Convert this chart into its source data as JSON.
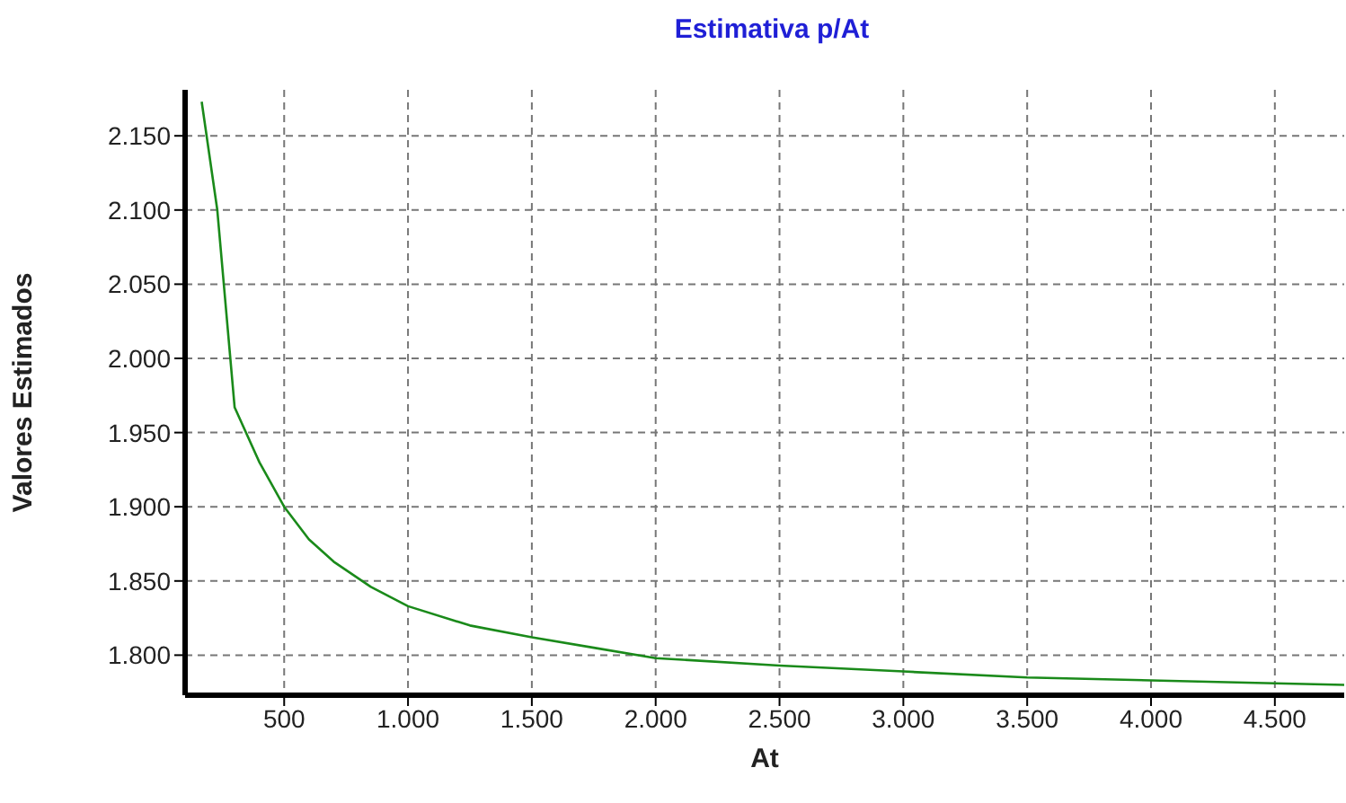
{
  "chart_data": {
    "type": "line",
    "title": "Estimativa p/At",
    "xlabel": "At",
    "ylabel": "Valores Estimados",
    "x": [
      167,
      230,
      300,
      400,
      500,
      600,
      700,
      850,
      1000,
      1250,
      1500,
      1750,
      2000,
      2500,
      3000,
      3500,
      4000,
      4500,
      4780
    ],
    "series": [
      {
        "color": "#1a8a1a",
        "values": [
          2173,
          2100,
          1967,
          1930,
          1900,
          1878,
          1863,
          1846,
          1833,
          1820,
          1812,
          1805,
          1798,
          1793,
          1789,
          1785,
          1783,
          1781,
          1780
        ]
      }
    ],
    "xlim": [
      100,
      4780
    ],
    "xticks": [
      {
        "value": 500,
        "label": "500"
      },
      {
        "value": 1000,
        "label": "1.000"
      },
      {
        "value": 1500,
        "label": "1.500"
      },
      {
        "value": 2000,
        "label": "2.000"
      },
      {
        "value": 2500,
        "label": "2.500"
      },
      {
        "value": 3000,
        "label": "3.000"
      },
      {
        "value": 3500,
        "label": "3.500"
      },
      {
        "value": 4000,
        "label": "4.000"
      },
      {
        "value": 4500,
        "label": "4.500"
      }
    ],
    "ylim": [
      1773,
      2181
    ],
    "yticks": [
      {
        "value": 1800,
        "label": "1.800"
      },
      {
        "value": 1850,
        "label": "1.850"
      },
      {
        "value": 1900,
        "label": "1.900"
      },
      {
        "value": 1950,
        "label": "1.950"
      },
      {
        "value": 2000,
        "label": "2.000"
      },
      {
        "value": 2050,
        "label": "2.050"
      },
      {
        "value": 2100,
        "label": "2.100"
      },
      {
        "value": 2150,
        "label": "2.150"
      }
    ],
    "grid": true,
    "line_style": "solid",
    "marker": "none"
  }
}
